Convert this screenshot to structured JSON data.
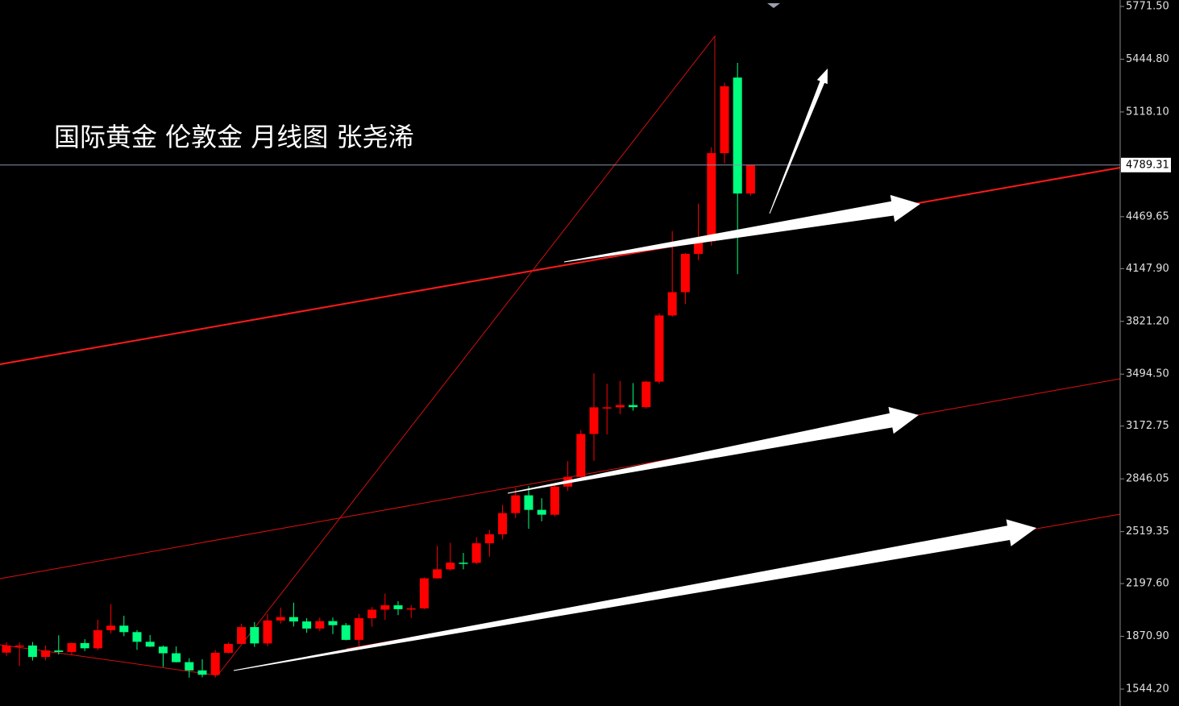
{
  "chart_data": {
    "type": "candlestick",
    "title": "国际黄金 伦敦金 月线图 张尧浠",
    "up_color": "#ff0000",
    "down_color": "#00ff7f",
    "open": [
      1770,
      1814,
      1814,
      1743,
      1783,
      1774,
      1829,
      1797,
      1909,
      1937,
      1897,
      1837,
      1807,
      1766,
      1711,
      1660,
      1633,
      1769,
      1824,
      1928,
      1827,
      1969,
      1990,
      1963,
      1919,
      1965,
      1940,
      1849,
      1983,
      2036,
      2063,
      2039,
      2044,
      2230,
      2286,
      2327,
      2326,
      2447,
      2503,
      2634,
      2744,
      2654,
      2624,
      2798,
      2858,
      3124,
      3289,
      3289,
      3303,
      3290,
      3448,
      3858,
      4002,
      4239,
      4318,
      4863,
      5331,
      4613
    ],
    "high": [
      1834,
      1832,
      1836,
      1814,
      1877,
      1831,
      1853,
      1974,
      2070,
      1998,
      1909,
      1879,
      1814,
      1808,
      1735,
      1729,
      1786,
      1833,
      1949,
      1959,
      2009,
      2049,
      2079,
      1983,
      1987,
      1987,
      1953,
      2009,
      2052,
      2135,
      2088,
      2065,
      2235,
      2431,
      2450,
      2387,
      2483,
      2531,
      2685,
      2790,
      2801,
      2726,
      2817,
      2956,
      3148,
      3500,
      3435,
      3452,
      3439,
      3453,
      3871,
      4381,
      4245,
      4550,
      4900,
      5300,
      5422,
      4790
    ],
    "low": [
      1750,
      1687,
      1721,
      1722,
      1758,
      1753,
      1780,
      1786,
      1890,
      1872,
      1787,
      1805,
      1681,
      1709,
      1615,
      1617,
      1616,
      1765,
      1824,
      1805,
      1810,
      1950,
      1932,
      1893,
      1903,
      1885,
      1846,
      1810,
      1931,
      1973,
      2002,
      1984,
      2039,
      2228,
      2277,
      2286,
      2318,
      2364,
      2471,
      2604,
      2537,
      2583,
      2614,
      2772,
      2833,
      2957,
      3121,
      3247,
      3268,
      3281,
      3436,
      3850,
      3929,
      4200,
      4290,
      4800,
      4114,
      4600
    ],
    "close": [
      1814,
      1814,
      1743,
      1783,
      1774,
      1829,
      1797,
      1909,
      1937,
      1897,
      1837,
      1807,
      1766,
      1711,
      1660,
      1633,
      1769,
      1824,
      1928,
      1827,
      1969,
      1990,
      1963,
      1919,
      1965,
      1940,
      1849,
      1983,
      2036,
      2063,
      2039,
      2044,
      2230,
      2286,
      2327,
      2326,
      2447,
      2503,
      2634,
      2744,
      2654,
      2624,
      2798,
      2858,
      3124,
      3289,
      3289,
      3303,
      3290,
      3448,
      3858,
      4002,
      4239,
      4318,
      4863,
      5277,
      4613,
      4789.31
    ],
    "last_price": 4789.31,
    "ylim": [
      1439.4,
      5811.4
    ],
    "yticks": [
      {
        "value": 5771.5,
        "label": "5771.50"
      },
      {
        "value": 5444.8,
        "label": "5444.80"
      },
      {
        "value": 5118.1,
        "label": "5118.10"
      },
      4469.65,
      {
        "value": 4147.9,
        "label": "4147.90"
      },
      {
        "value": 3821.2,
        "label": "3821.20"
      },
      {
        "value": 3494.5,
        "label": "3494.50"
      },
      3172.75,
      2846.05,
      2519.35,
      {
        "value": 2197.6,
        "label": "2197.60"
      },
      {
        "value": 1870.9,
        "label": "1870.90"
      },
      {
        "value": 1544.2,
        "label": "1544.20"
      }
    ]
  }
}
